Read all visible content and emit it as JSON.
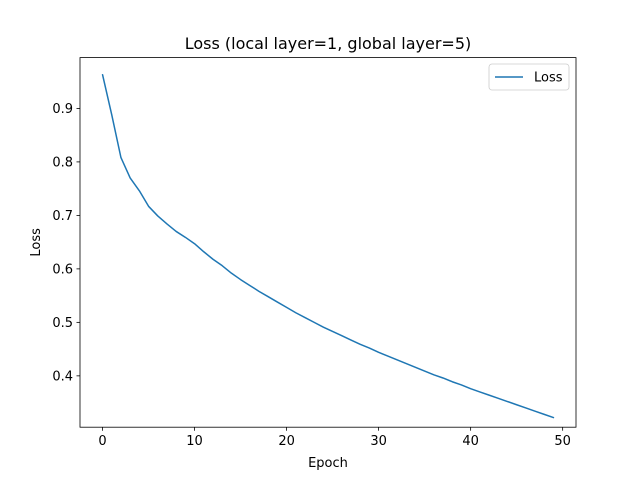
{
  "chart_data": {
    "type": "line",
    "title": "Loss (local layer=1, global layer=5)",
    "xlabel": "Epoch",
    "ylabel": "Loss",
    "xlim": [
      -2.45,
      51.45
    ],
    "ylim": [
      0.304,
      0.995
    ],
    "xticks": [
      0,
      10,
      20,
      30,
      40,
      50
    ],
    "yticks": [
      0.4,
      0.5,
      0.6,
      0.7,
      0.8,
      0.9
    ],
    "ytick_labels": [
      "0.4",
      "0.5",
      "0.6",
      "0.7",
      "0.8",
      "0.9"
    ],
    "xtick_labels": [
      "0",
      "10",
      "20",
      "30",
      "40",
      "50"
    ],
    "grid": false,
    "legend_position": "top-right",
    "series": [
      {
        "name": "Loss",
        "color": "#1f77b4",
        "x": [
          0,
          1,
          2,
          3,
          4,
          5,
          6,
          7,
          8,
          9,
          10,
          11,
          12,
          13,
          14,
          15,
          16,
          17,
          18,
          19,
          20,
          21,
          22,
          23,
          24,
          25,
          26,
          27,
          28,
          29,
          30,
          31,
          32,
          33,
          34,
          35,
          36,
          37,
          38,
          39,
          40,
          41,
          42,
          43,
          44,
          45,
          46,
          47,
          48,
          49
        ],
        "values": [
          0.963,
          0.888,
          0.808,
          0.77,
          0.746,
          0.717,
          0.699,
          0.684,
          0.67,
          0.659,
          0.647,
          0.632,
          0.618,
          0.606,
          0.592,
          0.58,
          0.569,
          0.558,
          0.548,
          0.538,
          0.528,
          0.518,
          0.509,
          0.5,
          0.491,
          0.483,
          0.475,
          0.467,
          0.459,
          0.452,
          0.444,
          0.437,
          0.43,
          0.423,
          0.416,
          0.409,
          0.402,
          0.396,
          0.389,
          0.383,
          0.376,
          0.37,
          0.364,
          0.358,
          0.352,
          0.346,
          0.34,
          0.334,
          0.328,
          0.322
        ]
      }
    ]
  }
}
